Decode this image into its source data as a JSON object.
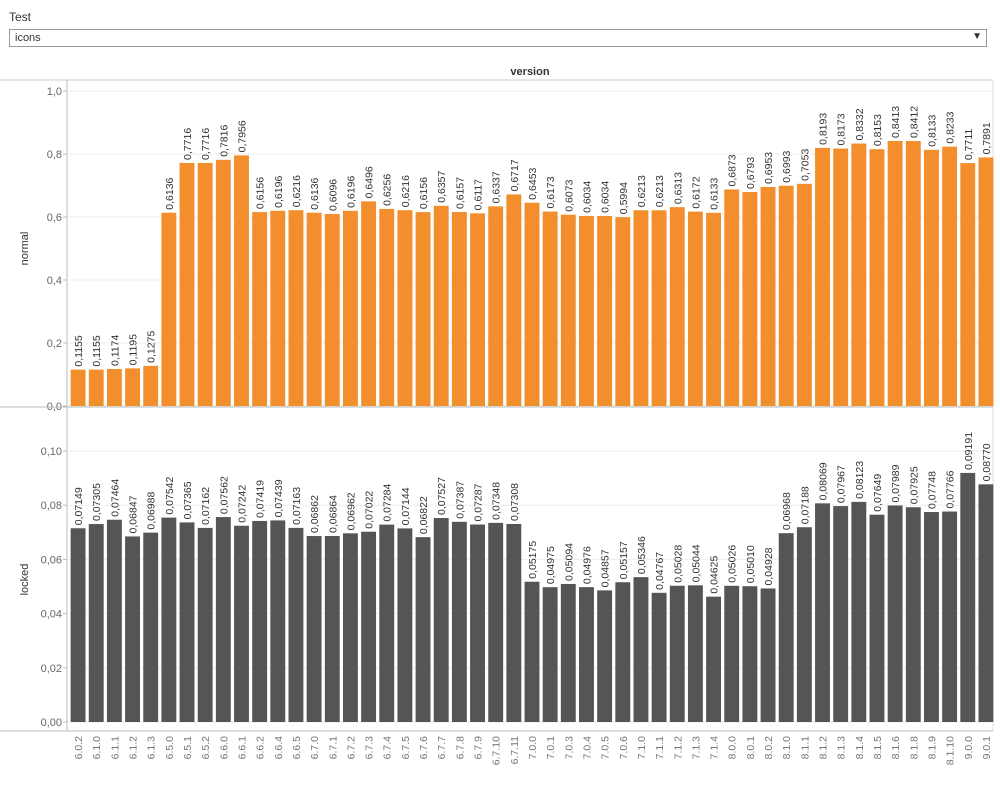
{
  "filter": {
    "title": "Test",
    "value": "icons",
    "arrow_icon": "dropdown-arrow-icon"
  },
  "chart_data": {
    "type": "bar",
    "column_header": "version",
    "categories": [
      "6.0.2",
      "6.1.0",
      "6.1.1",
      "6.1.2",
      "6.1.3",
      "6.5.0",
      "6.5.1",
      "6.5.2",
      "6.6.0",
      "6.6.1",
      "6.6.2",
      "6.6.4",
      "6.6.5",
      "6.7.0",
      "6.7.1",
      "6.7.2",
      "6.7.3",
      "6.7.4",
      "6.7.5",
      "6.7.6",
      "6.7.7",
      "6.7.8",
      "6.7.9",
      "6.7.10",
      "6.7.11",
      "7.0.0",
      "7.0.1",
      "7.0.3",
      "7.0.4",
      "7.0.5",
      "7.0.6",
      "7.1.0",
      "7.1.1",
      "7.1.2",
      "7.1.3",
      "7.1.4",
      "8.0.0",
      "8.0.1",
      "8.0.2",
      "8.1.0",
      "8.1.1",
      "8.1.2",
      "8.1.3",
      "8.1.4",
      "8.1.5",
      "8.1.6",
      "8.1.8",
      "8.1.9",
      "8.1.10",
      "9.0.0",
      "9.0.1"
    ],
    "series": [
      {
        "name": "normal",
        "color": "#f28e2b",
        "ylim": [
          0,
          1.0
        ],
        "ticks": [
          "0,0",
          "0,2",
          "0,4",
          "0,6",
          "0,8",
          "1,0"
        ],
        "tick_values": [
          0,
          0.2,
          0.4,
          0.6,
          0.8,
          1.0
        ],
        "values": [
          0.1155,
          0.1155,
          0.1174,
          0.1195,
          0.1275,
          0.6136,
          0.7716,
          0.7716,
          0.7816,
          0.7956,
          0.6156,
          0.6196,
          0.6216,
          0.6136,
          0.6096,
          0.6196,
          0.6496,
          0.6256,
          0.6216,
          0.6156,
          0.6357,
          0.6157,
          0.6117,
          0.6337,
          0.6717,
          0.6453,
          0.6173,
          0.6073,
          0.6034,
          0.6034,
          0.5994,
          0.6213,
          0.6213,
          0.6313,
          0.6172,
          0.6133,
          0.6873,
          0.6793,
          0.6953,
          0.6993,
          0.7053,
          0.8193,
          0.8173,
          0.8332,
          0.8153,
          0.8413,
          0.8412,
          0.8133,
          0.8233,
          0.7711,
          0.7891
        ],
        "labels": [
          "0,1155",
          "0,1155",
          "0,1174",
          "0,1195",
          "0,1275",
          "0,6136",
          "0,7716",
          "0,7716",
          "0,7816",
          "0,7956",
          "0,6156",
          "0,6196",
          "0,6216",
          "0,6136",
          "0,6096",
          "0,6196",
          "0,6496",
          "0,6256",
          "0,6216",
          "0,6156",
          "0,6357",
          "0,6157",
          "0,6117",
          "0,6337",
          "0,6717",
          "0,6453",
          "0,6173",
          "0,6073",
          "0,6034",
          "0,6034",
          "0,5994",
          "0,6213",
          "0,6213",
          "0,6313",
          "0,6172",
          "0,6133",
          "0,6873",
          "0,6793",
          "0,6953",
          "0,6993",
          "0,7053",
          "0,8193",
          "0,8173",
          "0,8332",
          "0,8153",
          "0,8413",
          "0,8412",
          "0,8133",
          "0,8233",
          "0,7711",
          "0,7891"
        ]
      },
      {
        "name": "locked",
        "color": "#555555",
        "ylim": [
          0,
          0.11
        ],
        "ticks": [
          "0,00",
          "0,02",
          "0,04",
          "0,06",
          "0,08",
          "0,10"
        ],
        "tick_values": [
          0,
          0.02,
          0.04,
          0.06,
          0.08,
          0.1
        ],
        "values": [
          0.07149,
          0.07305,
          0.07464,
          0.06847,
          0.06988,
          0.07542,
          0.07365,
          0.07162,
          0.07562,
          0.07242,
          0.07419,
          0.07439,
          0.07163,
          0.06862,
          0.06864,
          0.06962,
          0.07022,
          0.07284,
          0.07144,
          0.06822,
          0.07527,
          0.07387,
          0.07287,
          0.07348,
          0.07308,
          0.05175,
          0.04975,
          0.05094,
          0.04976,
          0.04857,
          0.05157,
          0.05346,
          0.04767,
          0.05028,
          0.05044,
          0.04625,
          0.05026,
          0.0501,
          0.04928,
          0.06968,
          0.07188,
          0.08069,
          0.07967,
          0.08123,
          0.07649,
          0.07989,
          0.07925,
          0.07748,
          0.07766,
          0.09191,
          0.0877
        ],
        "labels": [
          "0,07149",
          "0,07305",
          "0,07464",
          "0,06847",
          "0,06988",
          "0,07542",
          "0,07365",
          "0,07162",
          "0,07562",
          "0,07242",
          "0,07419",
          "0,07439",
          "0,07163",
          "0,06862",
          "0,06864",
          "0,06962",
          "0,07022",
          "0,07284",
          "0,07144",
          "0,06822",
          "0,07527",
          "0,07387",
          "0,07287",
          "0,07348",
          "0,07308",
          "0,05175",
          "0,04975",
          "0,05094",
          "0,04976",
          "0,04857",
          "0,05157",
          "0,05346",
          "0,04767",
          "0,05028",
          "0,05044",
          "0,04625",
          "0,05026",
          "0,05010",
          "0,04928",
          "0,06968",
          "0,07188",
          "0,08069",
          "0,07967",
          "0,08123",
          "0,07649",
          "0,07989",
          "0,07925",
          "0,07748",
          "0,07766",
          "0,09191",
          "0,08770"
        ]
      }
    ]
  }
}
